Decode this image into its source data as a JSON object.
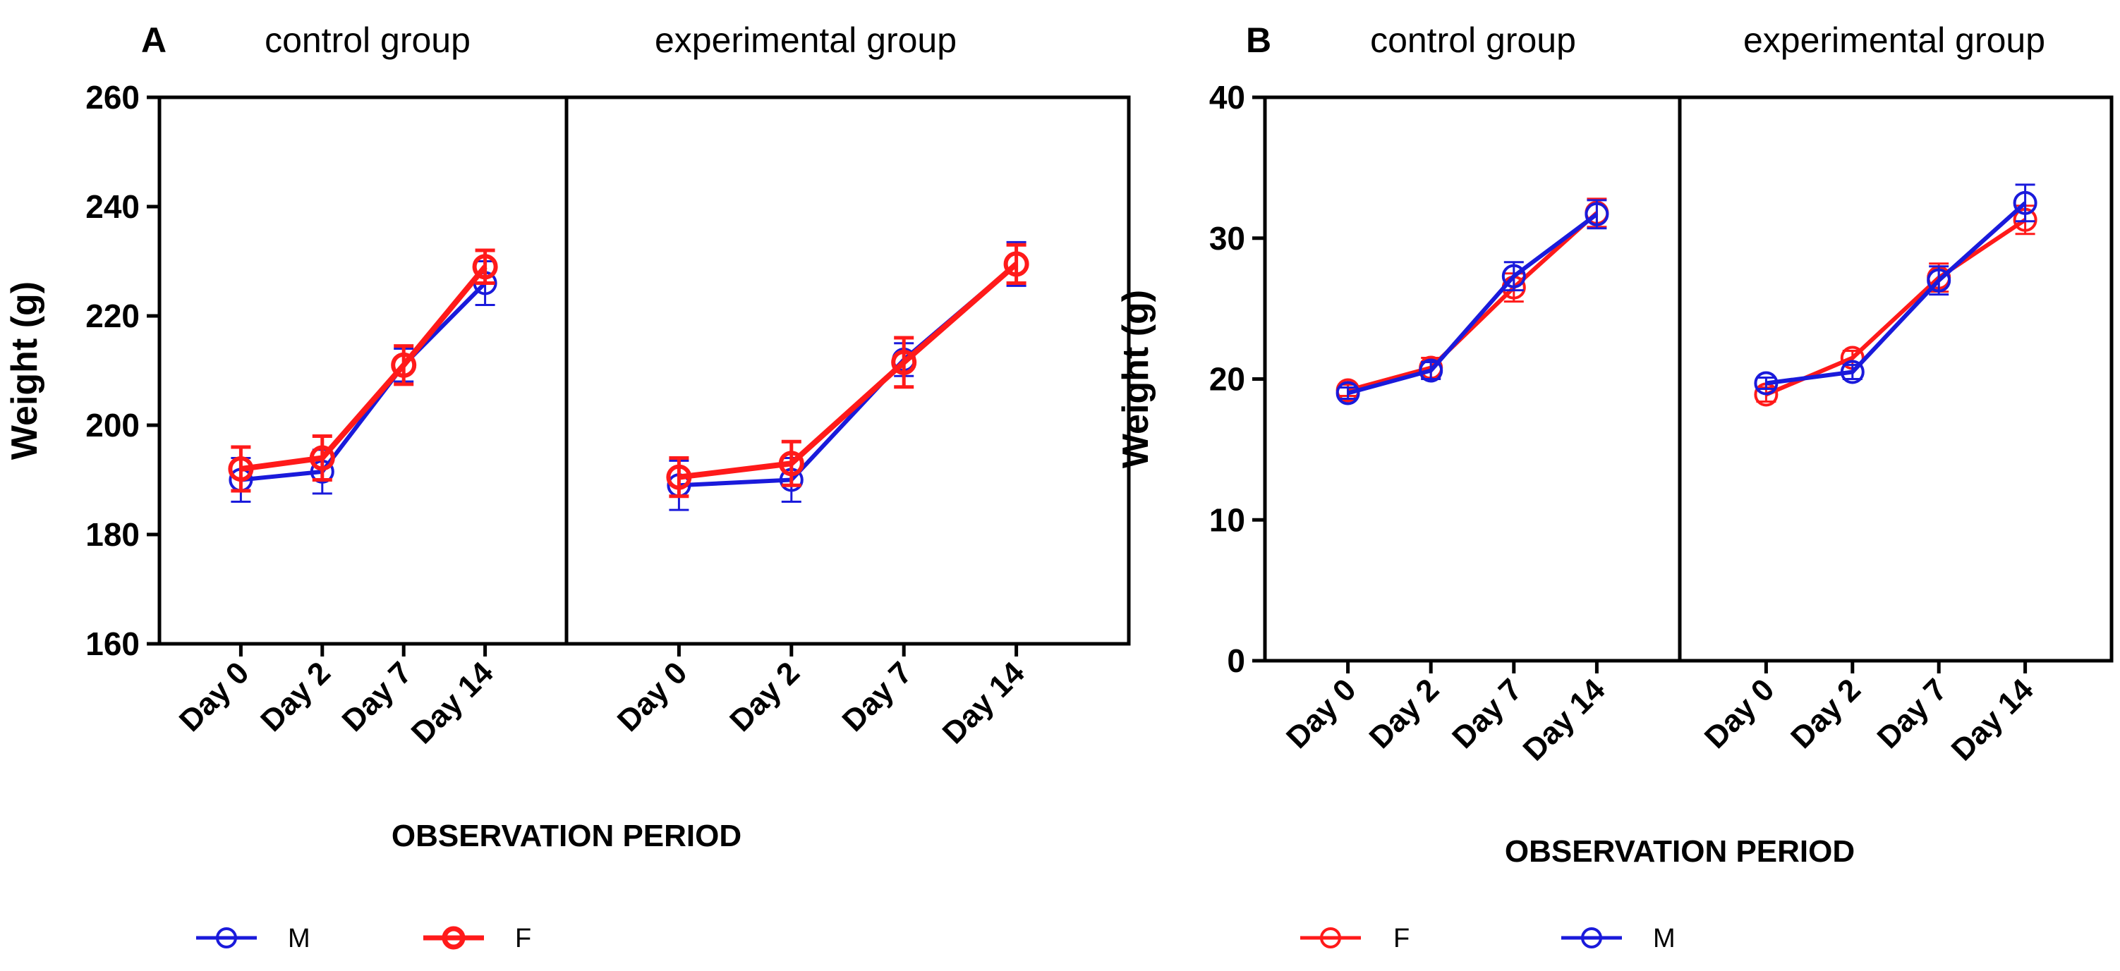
{
  "colors": {
    "male": "#1a1adb",
    "female": "#ff1a1a",
    "axis": "#000000"
  },
  "chart_data": [
    {
      "type": "line",
      "panel_label": "A",
      "groups": [
        "control group",
        "experimental group"
      ],
      "categories": [
        "Day 0",
        "Day 2",
        "Day 7",
        "Day 14"
      ],
      "ylabel": "Weight (g)",
      "xlabel": "OBSERVATION PERIOD",
      "ylim": [
        160,
        260
      ],
      "yticks": [
        160,
        180,
        200,
        220,
        240,
        260
      ],
      "series": [
        {
          "name": "M",
          "color": "#1a1adb",
          "values": [
            [
              190,
              191.5,
              211,
              226
            ],
            [
              189,
              190,
              212,
              229.5
            ]
          ],
          "errors": [
            [
              4,
              4,
              3,
              4
            ],
            [
              4.5,
              4,
              3,
              4
            ]
          ]
        },
        {
          "name": "F",
          "color": "#ff1a1a",
          "values": [
            [
              192,
              194,
              211,
              229
            ],
            [
              190.5,
              193,
              211.5,
              229.5
            ]
          ],
          "errors": [
            [
              4,
              4,
              3.5,
              3
            ],
            [
              3.5,
              4,
              4.5,
              3.5
            ]
          ]
        }
      ],
      "legend": [
        "M",
        "F"
      ]
    },
    {
      "type": "line",
      "panel_label": "B",
      "groups": [
        "control group",
        "experimental group"
      ],
      "categories": [
        "Day 0",
        "Day 2",
        "Day 7",
        "Day 14"
      ],
      "ylabel": "Weight (g)",
      "xlabel": "OBSERVATION PERIOD",
      "ylim": [
        0,
        40
      ],
      "yticks": [
        0,
        10,
        20,
        30,
        40
      ],
      "series": [
        {
          "name": "F",
          "color": "#ff1a1a",
          "values": [
            [
              19.2,
              20.8,
              26.5,
              31.8
            ],
            [
              18.9,
              21.5,
              27.2,
              31.3
            ]
          ],
          "errors": [
            [
              0.4,
              0.7,
              1.0,
              1.0
            ],
            [
              0.5,
              0.5,
              1.0,
              1.0
            ]
          ]
        },
        {
          "name": "M",
          "color": "#1a1adb",
          "values": [
            [
              19.0,
              20.6,
              27.3,
              31.7
            ],
            [
              19.7,
              20.5,
              27.0,
              32.5
            ]
          ],
          "errors": [
            [
              0.4,
              0.6,
              1.0,
              1.0
            ],
            [
              0.4,
              0.5,
              1.0,
              1.3
            ]
          ]
        }
      ],
      "legend": [
        "F",
        "M"
      ]
    }
  ]
}
